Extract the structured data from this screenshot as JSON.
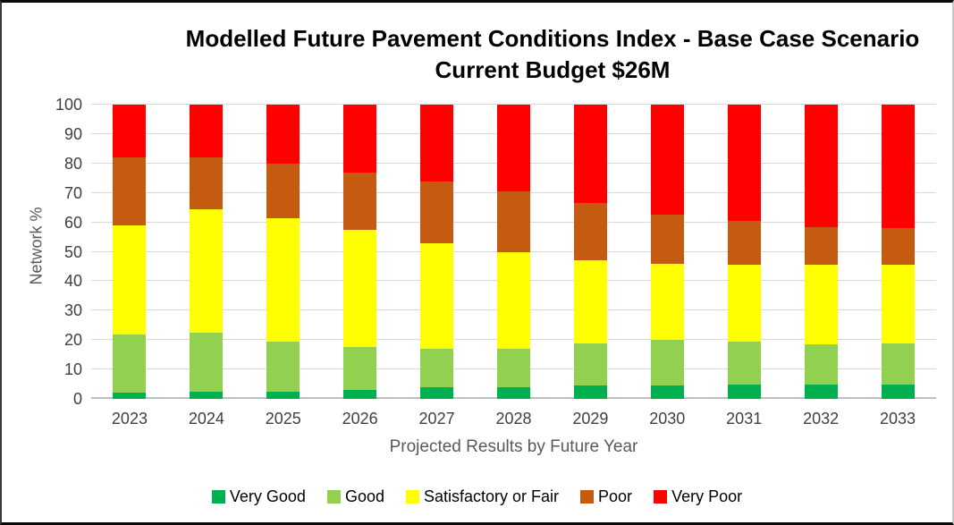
{
  "chart_data": {
    "type": "bar",
    "stacked": true,
    "title": "Modelled Future Pavement Conditions Index - Base Case Scenario",
    "subtitle": "Current Budget $26M",
    "xlabel": "Projected Results by Future Year",
    "ylabel": "Network %",
    "ylim": [
      0,
      100
    ],
    "yticks": [
      0,
      10,
      20,
      30,
      40,
      50,
      60,
      70,
      80,
      90,
      100
    ],
    "grid": true,
    "legend_position": "bottom",
    "categories": [
      "2023",
      "2024",
      "2025",
      "2026",
      "2027",
      "2028",
      "2029",
      "2030",
      "2031",
      "2032",
      "2033"
    ],
    "series": [
      {
        "name": "Very Good",
        "color": "#00B050",
        "values": [
          2,
          2.5,
          2.5,
          3,
          4,
          4,
          4.5,
          4.5,
          5,
          5,
          5
        ]
      },
      {
        "name": "Good",
        "color": "#92D050",
        "values": [
          20,
          20,
          17,
          14.5,
          13,
          13,
          14.5,
          15.5,
          14.5,
          13.5,
          14
        ]
      },
      {
        "name": "Satisfactory or Fair",
        "color": "#FFFF00",
        "values": [
          37,
          42,
          42,
          40,
          36,
          33,
          28,
          26,
          26,
          27,
          26.5
        ]
      },
      {
        "name": "Poor",
        "color": "#C55A11",
        "values": [
          23,
          17.5,
          18.5,
          19.5,
          21,
          20.5,
          19.5,
          16.5,
          15,
          13,
          12.5
        ]
      },
      {
        "name": "Very Poor",
        "color": "#FF0000",
        "values": [
          18,
          18,
          20,
          23,
          26,
          29.5,
          33.5,
          37.5,
          39.5,
          41.5,
          42
        ]
      }
    ]
  }
}
